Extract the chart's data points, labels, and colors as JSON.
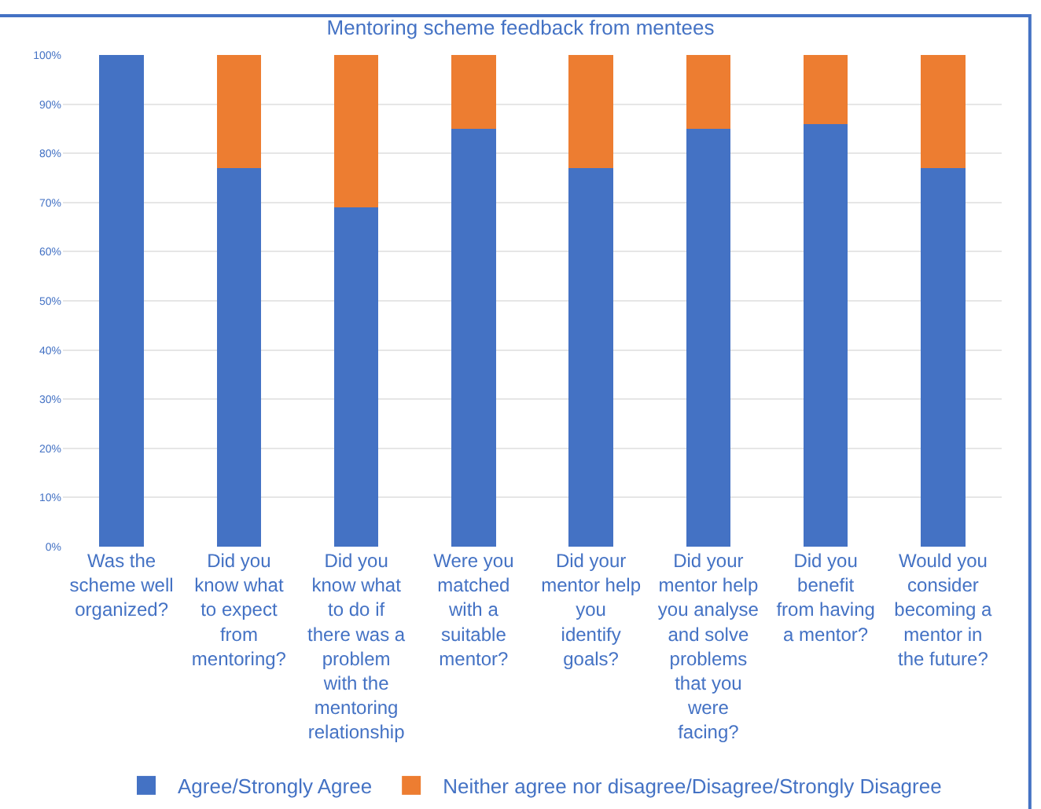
{
  "chart_data": {
    "type": "bar",
    "stacked": true,
    "title": "Mentoring scheme feedback from mentees",
    "categories": [
      "Was the scheme well organized?",
      "Did you know what to expect from mentoring?",
      "Did you know what to do if there was a problem with the mentoring relationship",
      "Were you matched with a suitable mentor?",
      "Did your mentor help you identify goals?",
      "Did your mentor help you analyse and solve problems that you were facing?",
      "Did you benefit from having a mentor?",
      "Would you consider becoming a mentor in the future?"
    ],
    "series": [
      {
        "name": "Agree/Strongly Agree",
        "color": "#4472c4",
        "values": [
          100,
          77,
          69,
          85,
          77,
          85,
          86,
          77
        ]
      },
      {
        "name": "Neither agree nor disagree/Disagree/Strongly Disagree",
        "color": "#ed7d31",
        "values": [
          0,
          23,
          31,
          15,
          23,
          15,
          14,
          23
        ]
      }
    ],
    "ylim": [
      0,
      100
    ],
    "yticks": [
      {
        "value": 0,
        "label": "0%"
      },
      {
        "value": 10,
        "label": "10%"
      },
      {
        "value": 20,
        "label": "20%"
      },
      {
        "value": 30,
        "label": "30%"
      },
      {
        "value": 40,
        "label": "40%"
      },
      {
        "value": 50,
        "label": "50%"
      },
      {
        "value": 60,
        "label": "60%"
      },
      {
        "value": 70,
        "label": "70%"
      },
      {
        "value": 80,
        "label": "80%"
      },
      {
        "value": 90,
        "label": "90%"
      },
      {
        "value": 100,
        "label": "100%"
      }
    ],
    "grid": "y",
    "legend": "bottom"
  }
}
